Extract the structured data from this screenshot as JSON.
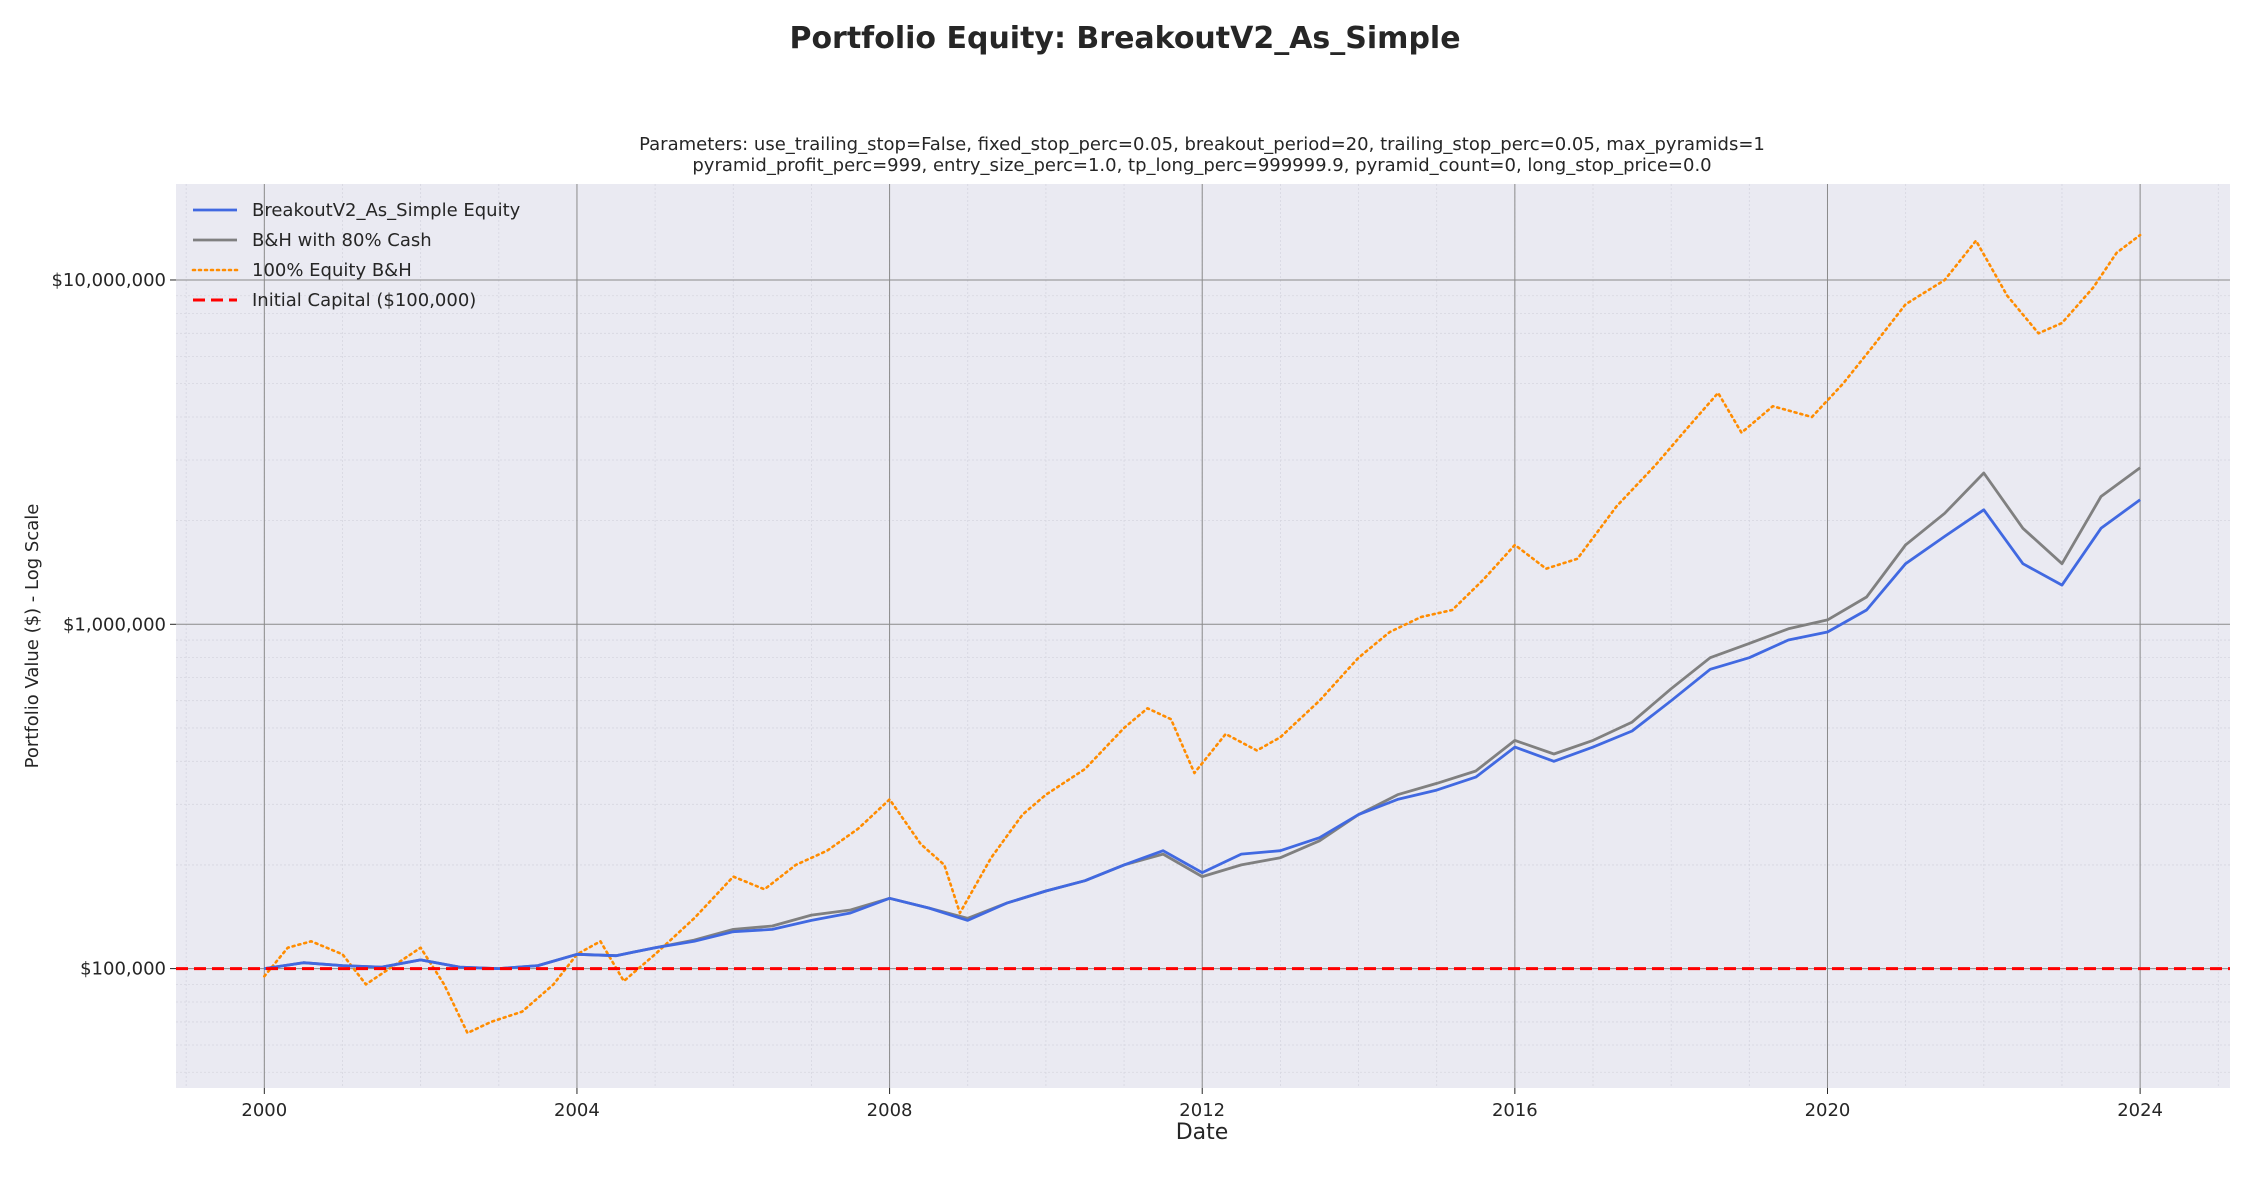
{
  "chart_data": {
    "type": "line",
    "title": "Portfolio Equity: BreakoutV2_As_Simple",
    "subtitle_lines": [
      "Parameters: use_trailing_stop=False, fixed_stop_perc=0.05, breakout_period=20, trailing_stop_perc=0.05, max_pyramids=1",
      "pyramid_profit_perc=999, entry_size_perc=1.0, tp_long_perc=999999.9, pyramid_count=0, long_stop_price=0.0"
    ],
    "xlabel": "Date",
    "ylabel": "Portfolio Value ($) - Log Scale",
    "y_scale": "log",
    "xlim": [
      1998.87,
      2025.15
    ],
    "ylim": [
      45000,
      19000000
    ],
    "x_ticks": [
      2000,
      2004,
      2008,
      2012,
      2016,
      2020,
      2024
    ],
    "x_tick_labels": [
      "2000",
      "2004",
      "2008",
      "2012",
      "2016",
      "2020",
      "2024"
    ],
    "y_ticks": [
      100000,
      1000000,
      10000000
    ],
    "y_tick_labels": [
      "$100,000",
      "$1,000,000",
      "$10,000,000"
    ],
    "grid": true,
    "legend_position": "top-left",
    "background": "#eaeaf2",
    "series": [
      {
        "name": "BreakoutV2_As_Simple Equity",
        "color": "#4169e1",
        "style": "solid",
        "x": [
          2000.0,
          2000.5,
          2001.0,
          2001.5,
          2002.0,
          2002.5,
          2003.0,
          2003.5,
          2004.0,
          2004.5,
          2005.0,
          2005.5,
          2006.0,
          2006.5,
          2007.0,
          2007.5,
          2008.0,
          2008.5,
          2009.0,
          2009.5,
          2010.0,
          2010.5,
          2011.0,
          2011.5,
          2012.0,
          2012.5,
          2013.0,
          2013.5,
          2014.0,
          2014.5,
          2015.0,
          2015.5,
          2016.0,
          2016.5,
          2017.0,
          2017.5,
          2018.0,
          2018.5,
          2019.0,
          2019.5,
          2020.0,
          2020.5,
          2021.0,
          2021.5,
          2022.0,
          2022.5,
          2023.0,
          2023.5,
          2024.0
        ],
        "y": [
          100000,
          104000,
          102000,
          101000,
          106000,
          101000,
          100000,
          102000,
          110000,
          109000,
          115000,
          120000,
          128000,
          130000,
          138000,
          145000,
          160000,
          150000,
          138000,
          155000,
          168000,
          180000,
          200000,
          220000,
          190000,
          215000,
          220000,
          240000,
          280000,
          310000,
          330000,
          360000,
          440000,
          400000,
          440000,
          490000,
          600000,
          740000,
          800000,
          900000,
          950000,
          1100000,
          1500000,
          1800000,
          2150000,
          1500000,
          1300000,
          1900000,
          2300000
        ]
      },
      {
        "name": "B&H with 80% Cash",
        "color": "#808080",
        "style": "solid",
        "x": [
          2000.0,
          2000.5,
          2001.0,
          2001.5,
          2002.0,
          2002.5,
          2003.0,
          2003.5,
          2004.0,
          2004.5,
          2005.0,
          2005.5,
          2006.0,
          2006.5,
          2007.0,
          2007.5,
          2008.0,
          2008.5,
          2009.0,
          2009.5,
          2010.0,
          2010.5,
          2011.0,
          2011.5,
          2012.0,
          2012.5,
          2013.0,
          2013.5,
          2014.0,
          2014.5,
          2015.0,
          2015.5,
          2016.0,
          2016.5,
          2017.0,
          2017.5,
          2018.0,
          2018.5,
          2019.0,
          2019.5,
          2020.0,
          2020.5,
          2021.0,
          2021.5,
          2022.0,
          2022.5,
          2023.0,
          2023.5,
          2024.0
        ],
        "y": [
          100000,
          104000,
          102000,
          101000,
          106000,
          101000,
          100000,
          102000,
          110000,
          109000,
          115000,
          121000,
          130000,
          133000,
          143000,
          148000,
          160000,
          150000,
          140000,
          155000,
          168000,
          180000,
          200000,
          215000,
          185000,
          200000,
          210000,
          235000,
          280000,
          320000,
          345000,
          375000,
          460000,
          420000,
          460000,
          520000,
          650000,
          800000,
          880000,
          970000,
          1030000,
          1200000,
          1700000,
          2100000,
          2750000,
          1900000,
          1500000,
          2350000,
          2850000
        ]
      },
      {
        "name": "100% Equity B&H",
        "color": "#ff8c00",
        "style": "dotted",
        "x": [
          2000.0,
          2000.3,
          2000.6,
          2001.0,
          2001.3,
          2001.6,
          2002.0,
          2002.3,
          2002.6,
          2002.9,
          2003.3,
          2003.7,
          2004.0,
          2004.3,
          2004.6,
          2005.0,
          2005.5,
          2006.0,
          2006.4,
          2006.8,
          2007.2,
          2007.6,
          2008.0,
          2008.4,
          2008.7,
          2008.9,
          2009.3,
          2009.7,
          2010.0,
          2010.5,
          2011.0,
          2011.3,
          2011.6,
          2011.9,
          2012.3,
          2012.7,
          2013.0,
          2013.5,
          2014.0,
          2014.4,
          2014.8,
          2015.2,
          2015.6,
          2016.0,
          2016.4,
          2016.8,
          2017.3,
          2017.8,
          2018.2,
          2018.6,
          2018.9,
          2019.3,
          2019.8,
          2020.2,
          2020.6,
          2021.0,
          2021.5,
          2021.9,
          2022.3,
          2022.7,
          2023.0,
          2023.4,
          2023.7,
          2024.0
        ],
        "y": [
          95000,
          115000,
          120000,
          110000,
          90000,
          100000,
          115000,
          90000,
          65000,
          70000,
          75000,
          90000,
          110000,
          120000,
          92000,
          110000,
          140000,
          185000,
          170000,
          200000,
          220000,
          255000,
          310000,
          230000,
          200000,
          145000,
          210000,
          280000,
          320000,
          380000,
          500000,
          570000,
          530000,
          370000,
          480000,
          430000,
          470000,
          600000,
          800000,
          950000,
          1050000,
          1100000,
          1350000,
          1700000,
          1450000,
          1550000,
          2200000,
          2900000,
          3700000,
          4700000,
          3600000,
          4300000,
          4000000,
          5000000,
          6500000,
          8500000,
          10000000,
          13000000,
          9000000,
          7000000,
          7500000,
          9500000,
          12000000,
          13500000
        ]
      },
      {
        "name": "Initial Capital ($100,000)",
        "color": "#ff0000",
        "style": "dashed",
        "y_const": 100000
      }
    ]
  }
}
